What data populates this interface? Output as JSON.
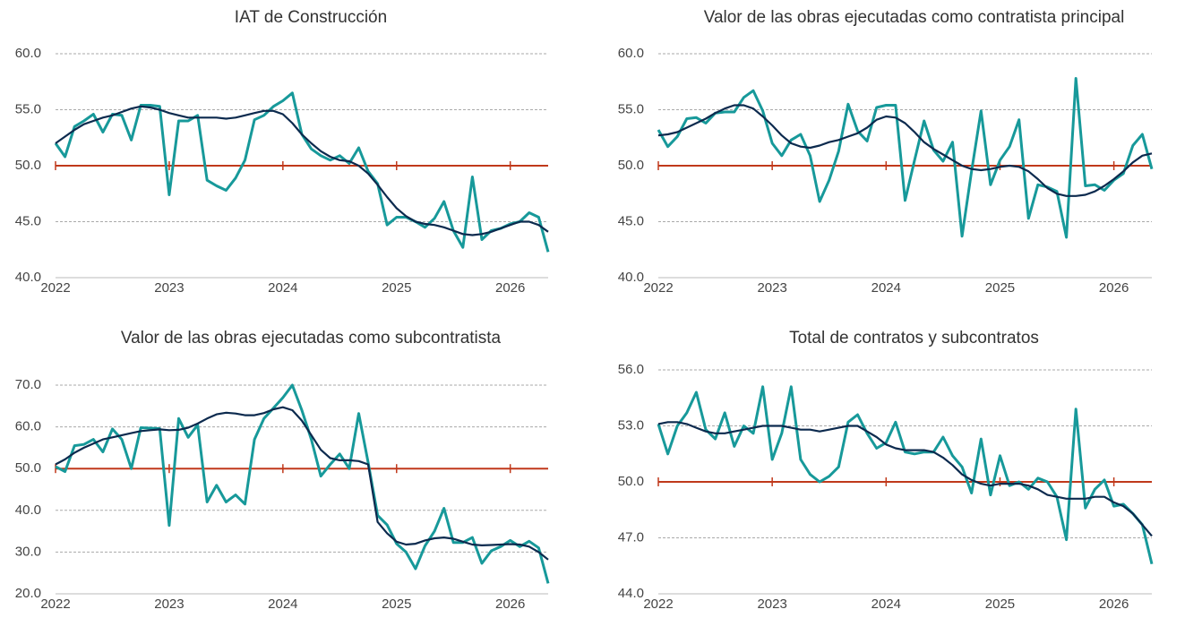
{
  "chart_data": [
    {
      "type": "line",
      "title": "IAT de Construcción",
      "categories": [
        "2022",
        null,
        null,
        null,
        null,
        null,
        null,
        null,
        null,
        null,
        null,
        null,
        "2023",
        null,
        null,
        null,
        null,
        null,
        null,
        null,
        null,
        null,
        null,
        null,
        "2024",
        null,
        null,
        null,
        null,
        null,
        null,
        null,
        null,
        null,
        null,
        null,
        "2025",
        null,
        null,
        null,
        null,
        null,
        null,
        null,
        null,
        null,
        null,
        null,
        "2026",
        null,
        null,
        null,
        null
      ],
      "series": [
        {
          "color": "#17999a",
          "values": [
            52.0,
            50.8,
            53.5,
            54.0,
            54.6,
            53.0,
            54.6,
            54.5,
            52.3,
            55.4,
            55.4,
            55.3,
            47.4,
            54.0,
            54.0,
            54.5,
            48.7,
            48.2,
            47.8,
            48.9,
            50.5,
            54.1,
            54.5,
            55.3,
            55.8,
            56.5,
            52.8,
            51.5,
            50.9,
            50.5,
            50.9,
            50.2,
            51.6,
            49.5,
            48.4,
            44.7,
            45.4,
            45.4,
            45.0,
            44.5,
            45.3,
            46.8,
            44.2,
            42.7,
            49.0,
            43.4,
            44.2,
            44.4,
            44.8,
            45.0,
            45.8,
            45.4,
            42.3
          ]
        },
        {
          "color": "#0c2a4e",
          "values": [
            52.0,
            52.6,
            53.2,
            53.7,
            54.0,
            54.3,
            54.5,
            54.8,
            55.1,
            55.3,
            55.2,
            55.0,
            54.7,
            54.5,
            54.3,
            54.3,
            54.3,
            54.3,
            54.2,
            54.3,
            54.5,
            54.7,
            54.9,
            54.9,
            54.6,
            53.8,
            52.8,
            52.0,
            51.3,
            50.8,
            50.5,
            50.4,
            50.0,
            49.3,
            48.3,
            47.2,
            46.2,
            45.5,
            45.0,
            44.8,
            44.7,
            44.5,
            44.2,
            43.9,
            43.8,
            43.9,
            44.1,
            44.4,
            44.7,
            45.0,
            45.0,
            44.7,
            44.1
          ]
        }
      ],
      "reference_line": {
        "value": 50,
        "color": "#c0391b"
      },
      "ylim": [
        40,
        60
      ],
      "yticks": [
        {
          "value": 40,
          "label": "40.0"
        },
        {
          "value": 45,
          "label": "45.0"
        },
        {
          "value": 50,
          "label": "50.0"
        },
        {
          "value": 55,
          "label": "55.0"
        },
        {
          "value": 60,
          "label": "60.0"
        }
      ],
      "grid": true
    },
    {
      "type": "line",
      "title": "Valor de las obras ejecutadas como contratista principal",
      "categories": [
        "2022",
        null,
        null,
        null,
        null,
        null,
        null,
        null,
        null,
        null,
        null,
        null,
        "2023",
        null,
        null,
        null,
        null,
        null,
        null,
        null,
        null,
        null,
        null,
        null,
        "2024",
        null,
        null,
        null,
        null,
        null,
        null,
        null,
        null,
        null,
        null,
        null,
        "2025",
        null,
        null,
        null,
        null,
        null,
        null,
        null,
        null,
        null,
        null,
        null,
        "2026",
        null,
        null,
        null,
        null
      ],
      "series": [
        {
          "color": "#17999a",
          "values": [
            53.2,
            51.7,
            52.6,
            54.2,
            54.3,
            53.8,
            54.7,
            54.8,
            54.8,
            56.1,
            56.7,
            54.9,
            52.0,
            50.9,
            52.3,
            52.8,
            50.9,
            46.8,
            48.7,
            51.3,
            55.5,
            53.1,
            52.2,
            55.2,
            55.4,
            55.4,
            46.9,
            50.5,
            54.0,
            51.4,
            50.4,
            52.1,
            43.7,
            49.5,
            54.9,
            48.3,
            50.5,
            51.7,
            54.1,
            45.3,
            48.3,
            48.1,
            47.7,
            43.6,
            57.8,
            48.2,
            48.3,
            47.8,
            48.7,
            49.3,
            51.8,
            52.8,
            49.7
          ]
        },
        {
          "color": "#0c2a4e",
          "values": [
            52.7,
            52.8,
            53.0,
            53.4,
            53.8,
            54.2,
            54.7,
            55.1,
            55.4,
            55.4,
            55.1,
            54.4,
            53.6,
            52.7,
            52.0,
            51.7,
            51.6,
            51.8,
            52.1,
            52.3,
            52.6,
            52.9,
            53.4,
            54.1,
            54.4,
            54.3,
            53.8,
            53.0,
            52.1,
            51.5,
            51.0,
            50.5,
            50.0,
            49.7,
            49.6,
            49.7,
            49.9,
            50.0,
            49.9,
            49.5,
            48.8,
            48.0,
            47.5,
            47.3,
            47.3,
            47.4,
            47.7,
            48.2,
            48.8,
            49.5,
            50.3,
            50.9,
            51.1
          ]
        }
      ],
      "reference_line": {
        "value": 50,
        "color": "#c0391b"
      },
      "ylim": [
        40,
        60
      ],
      "yticks": [
        {
          "value": 40,
          "label": "40.0"
        },
        {
          "value": 45,
          "label": "45.0"
        },
        {
          "value": 50,
          "label": "50.0"
        },
        {
          "value": 55,
          "label": "55.0"
        },
        {
          "value": 60,
          "label": "60.0"
        }
      ],
      "grid": true
    },
    {
      "type": "line",
      "title": "Valor de las obras ejecutadas como subcontratista",
      "categories": [
        "2022",
        null,
        null,
        null,
        null,
        null,
        null,
        null,
        null,
        null,
        null,
        null,
        "2023",
        null,
        null,
        null,
        null,
        null,
        null,
        null,
        null,
        null,
        null,
        null,
        "2024",
        null,
        null,
        null,
        null,
        null,
        null,
        null,
        null,
        null,
        null,
        null,
        "2025",
        null,
        null,
        null,
        null,
        null,
        null,
        null,
        null,
        null,
        null,
        null,
        "2026",
        null,
        null,
        null,
        null
      ],
      "series": [
        {
          "color": "#17999a",
          "values": [
            50.5,
            49.3,
            55.5,
            55.8,
            57.0,
            54.0,
            59.5,
            57.0,
            50.0,
            59.8,
            59.7,
            59.6,
            36.4,
            62.0,
            57.5,
            60.5,
            42.0,
            46.0,
            42.0,
            43.7,
            41.5,
            57.0,
            62.0,
            64.5,
            67.0,
            70.0,
            64.0,
            57.0,
            48.2,
            51.0,
            53.5,
            50.0,
            63.2,
            51.5,
            38.8,
            36.5,
            32.0,
            30.0,
            26.0,
            31.5,
            35.0,
            40.5,
            32.3,
            32.3,
            33.5,
            27.3,
            30.3,
            31.3,
            32.8,
            31.3,
            32.6,
            31.0,
            22.5
          ]
        },
        {
          "color": "#0c2a4e",
          "values": [
            51.0,
            52.2,
            53.8,
            55.0,
            56.0,
            57.0,
            57.5,
            58.0,
            58.5,
            59.0,
            59.2,
            59.4,
            59.2,
            59.3,
            59.8,
            60.8,
            62.0,
            63.0,
            63.4,
            63.2,
            62.8,
            62.8,
            63.3,
            64.2,
            64.7,
            64.0,
            61.5,
            58.0,
            54.5,
            52.5,
            52.0,
            52.0,
            51.8,
            51.0,
            37.2,
            34.5,
            32.5,
            31.8,
            32.0,
            32.8,
            33.3,
            33.5,
            33.2,
            32.5,
            31.8,
            31.6,
            31.7,
            31.8,
            31.9,
            31.8,
            31.3,
            30.0,
            28.2
          ]
        }
      ],
      "reference_line": {
        "value": 50,
        "color": "#c0391b"
      },
      "ylim": [
        20,
        70
      ],
      "yticks": [
        {
          "value": 20,
          "label": "20.0"
        },
        {
          "value": 30,
          "label": "30.0"
        },
        {
          "value": 40,
          "label": "40.0"
        },
        {
          "value": 50,
          "label": "50.0"
        },
        {
          "value": 60,
          "label": "60.0"
        },
        {
          "value": 70,
          "label": "70.0"
        }
      ],
      "grid": true
    },
    {
      "type": "line",
      "title": "Total de contratos y subcontratos",
      "categories": [
        "2022",
        null,
        null,
        null,
        null,
        null,
        null,
        null,
        null,
        null,
        null,
        null,
        "2023",
        null,
        null,
        null,
        null,
        null,
        null,
        null,
        null,
        null,
        null,
        null,
        "2024",
        null,
        null,
        null,
        null,
        null,
        null,
        null,
        null,
        null,
        null,
        null,
        "2025",
        null,
        null,
        null,
        null,
        null,
        null,
        null,
        null,
        null,
        null,
        null,
        "2026",
        null,
        null,
        null,
        null
      ],
      "series": [
        {
          "color": "#17999a",
          "values": [
            53.1,
            51.5,
            53.0,
            53.7,
            54.8,
            52.8,
            52.3,
            53.7,
            51.9,
            53.0,
            52.6,
            55.1,
            51.2,
            52.6,
            55.1,
            51.2,
            50.4,
            50.0,
            50.3,
            50.8,
            53.2,
            53.6,
            52.6,
            51.8,
            52.1,
            53.2,
            51.6,
            51.5,
            51.6,
            51.6,
            52.4,
            51.4,
            50.8,
            49.4,
            52.3,
            49.3,
            51.4,
            49.8,
            50.0,
            49.6,
            50.2,
            50.0,
            49.2,
            46.9,
            53.9,
            48.6,
            49.6,
            50.1,
            48.7,
            48.8,
            48.3,
            47.7,
            45.6
          ]
        },
        {
          "color": "#0c2a4e",
          "values": [
            53.1,
            53.2,
            53.2,
            53.1,
            52.9,
            52.7,
            52.6,
            52.6,
            52.7,
            52.8,
            52.9,
            53.0,
            53.0,
            53.0,
            52.9,
            52.8,
            52.8,
            52.7,
            52.8,
            52.9,
            53.0,
            53.0,
            52.7,
            52.4,
            52.0,
            51.8,
            51.7,
            51.7,
            51.7,
            51.6,
            51.3,
            50.9,
            50.4,
            50.1,
            49.9,
            49.8,
            49.9,
            49.9,
            49.9,
            49.8,
            49.6,
            49.3,
            49.2,
            49.1,
            49.1,
            49.1,
            49.2,
            49.2,
            48.9,
            48.7,
            48.3,
            47.7,
            47.1
          ]
        }
      ],
      "reference_line": {
        "value": 50,
        "color": "#c0391b"
      },
      "ylim": [
        44,
        56
      ],
      "yticks": [
        {
          "value": 44,
          "label": "44.0"
        },
        {
          "value": 47,
          "label": "47.0"
        },
        {
          "value": 50,
          "label": "50.0"
        },
        {
          "value": 53,
          "label": "53.0"
        },
        {
          "value": 56,
          "label": "56.0"
        }
      ],
      "grid": true
    }
  ]
}
